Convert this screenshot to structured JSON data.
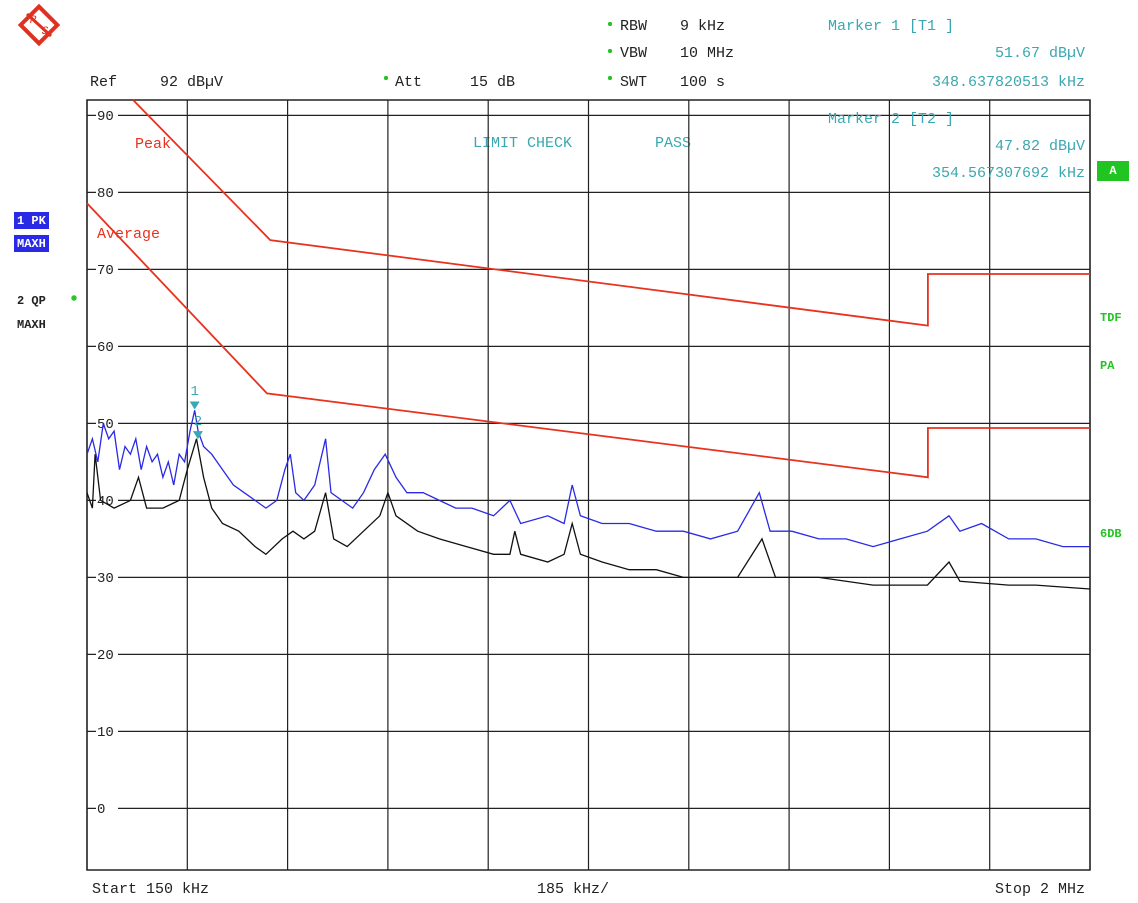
{
  "logo": {
    "top": "R",
    "bottom": "S"
  },
  "chart_data": {
    "type": "line",
    "settings": {
      "ref_label": "Ref",
      "ref_value": "92 dBµV",
      "att_label": "Att",
      "att_value": "15 dB",
      "rbw_label": "RBW",
      "rbw_value": "9 kHz",
      "vbw_label": "VBW",
      "vbw_value": "10 MHz",
      "swt_label": "SWT",
      "swt_value": "100 s"
    },
    "limit_check": "LIMIT CHECK",
    "limit_result": "PASS",
    "side_labels": {
      "a": "A",
      "tdf": "TDF",
      "pa": "PA",
      "db": "6DB"
    },
    "x_start": "Start 150 kHz",
    "x_division": "185 kHz/",
    "x_stop": "Stop 2 MHz",
    "xlim": [
      150,
      2000
    ],
    "xticks": [
      150,
      335,
      520,
      705,
      890,
      1075,
      1260,
      1445,
      1630,
      1815,
      2000
    ],
    "ylim": [
      -8,
      92
    ],
    "yticks": [
      0,
      10,
      20,
      30,
      40,
      50,
      60,
      70,
      80,
      90
    ],
    "grid": true,
    "series": [
      {
        "name": "1 PK",
        "mode": "MAXH",
        "color": "#2a2ae6",
        "x": [
          150,
          160,
          170,
          180,
          190,
          200,
          210,
          220,
          230,
          240,
          250,
          260,
          270,
          280,
          290,
          300,
          310,
          320,
          330,
          340,
          348.6,
          355,
          365,
          380,
          400,
          420,
          440,
          460,
          480,
          500,
          515,
          525,
          535,
          550,
          570,
          590,
          600,
          620,
          640,
          660,
          680,
          700,
          720,
          740,
          770,
          800,
          830,
          860,
          900,
          930,
          950,
          1000,
          1030,
          1045,
          1060,
          1100,
          1150,
          1200,
          1250,
          1300,
          1350,
          1390,
          1410,
          1450,
          1500,
          1550,
          1600,
          1650,
          1700,
          1740,
          1760,
          1800,
          1850,
          1900,
          1950,
          2000
        ],
        "values": [
          46,
          48,
          45,
          50,
          48,
          49,
          44,
          47,
          46,
          48,
          44,
          47,
          45,
          46,
          43,
          45,
          42,
          46,
          45,
          49,
          51.7,
          49,
          47,
          46,
          44,
          42,
          41,
          40,
          39,
          40,
          44,
          46,
          41,
          40,
          42,
          48,
          41,
          40,
          39,
          41,
          44,
          46,
          43,
          41,
          41,
          40,
          39,
          39,
          38,
          40,
          37,
          38,
          37,
          42,
          38,
          37,
          37,
          36,
          36,
          35,
          36,
          41,
          36,
          36,
          35,
          35,
          34,
          35,
          36,
          38,
          36,
          37,
          35,
          35,
          34,
          34
        ]
      },
      {
        "name": "2 QP",
        "mode": "MAXH",
        "color": "#111111",
        "x": [
          150,
          160,
          165,
          175,
          200,
          230,
          245,
          260,
          290,
          320,
          335,
          352,
          365,
          380,
          400,
          430,
          460,
          480,
          510,
          530,
          550,
          570,
          590,
          605,
          630,
          660,
          690,
          705,
          720,
          760,
          800,
          850,
          900,
          930,
          939,
          950,
          1000,
          1030,
          1045,
          1060,
          1100,
          1150,
          1200,
          1250,
          1300,
          1350,
          1395,
          1420,
          1500,
          1600,
          1700,
          1740,
          1760,
          1850,
          1900,
          2000
        ],
        "values": [
          41,
          39,
          46,
          40,
          39,
          40,
          43,
          39,
          39,
          40,
          44,
          48,
          43,
          39,
          37,
          36,
          34,
          33,
          35,
          36,
          35,
          36,
          41,
          35,
          34,
          36,
          38,
          41,
          38,
          36,
          35,
          34,
          33,
          33,
          36,
          33,
          32,
          33,
          37,
          33,
          32,
          31,
          31,
          30,
          30,
          30,
          35,
          30,
          30,
          29,
          29,
          32,
          29.5,
          29,
          29,
          28.5
        ]
      }
    ],
    "limit_lines": [
      {
        "name": "Peak",
        "color": "#e8321e",
        "x": [
          235,
          488,
          1701,
          1701,
          2000
        ],
        "values": [
          92,
          73.8,
          62.7,
          69.4,
          69.4
        ]
      },
      {
        "name": "Average",
        "color": "#e8321e",
        "x": [
          150,
          482,
          1701,
          1701,
          2000
        ],
        "values": [
          78.6,
          53.9,
          43,
          49.4,
          49.4
        ]
      }
    ],
    "markers": [
      {
        "id": "1",
        "name": "Marker 1 [T1 ]",
        "x": 348.637820513,
        "y": 51.67,
        "value_label": "51.67 dBµV",
        "x_label": "348.637820513 kHz"
      },
      {
        "id": "2",
        "name": "Marker 2 [T2 ]",
        "x": 354.567307692,
        "y": 47.82,
        "value_label": "47.82 dBµV",
        "x_label": "354.567307692 kHz"
      }
    ]
  }
}
